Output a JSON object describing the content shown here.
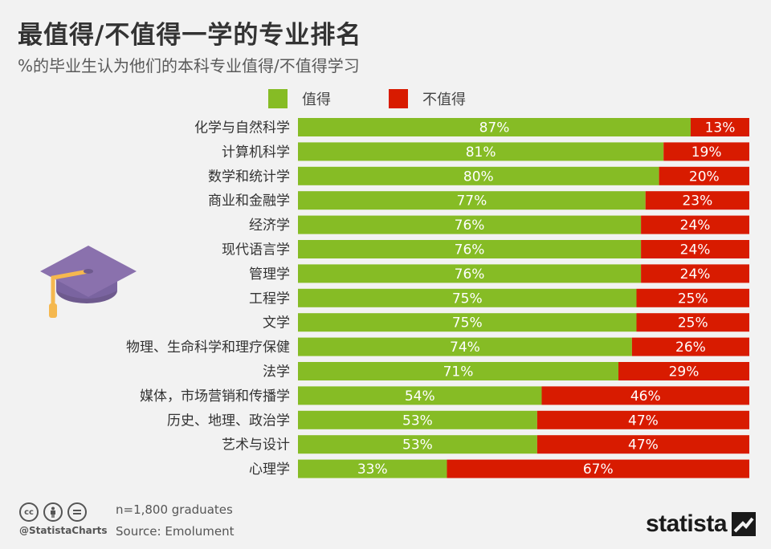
{
  "title": "最值得/不值得一学的专业排名",
  "subtitle": "%的毕业生认为他们的本科专业值得/不值得学习",
  "legend": {
    "worth_label": "值得",
    "not_worth_label": "不值得"
  },
  "colors": {
    "worth": "#86bc25",
    "not_worth": "#d81b00",
    "cap": "#8a71ad",
    "tassel": "#f5b84f"
  },
  "chart_data": {
    "type": "bar",
    "orientation": "horizontal",
    "stacked": true,
    "percent_suffix": "%",
    "categories": [
      "化学与自然科学",
      "计算机科学",
      "数学和统计学",
      "商业和金融学",
      "经济学",
      "现代语言学",
      "管理学",
      "工程学",
      "文学",
      "物理、生命科学和理疗保健",
      "法学",
      "媒体，市场营销和传播学",
      "历史、地理、政治学",
      "艺术与设计",
      "心理学"
    ],
    "series": [
      {
        "name": "值得",
        "values": [
          87,
          81,
          80,
          77,
          76,
          76,
          76,
          75,
          75,
          74,
          71,
          54,
          53,
          53,
          33
        ]
      },
      {
        "name": "不值得",
        "values": [
          13,
          19,
          20,
          23,
          24,
          24,
          24,
          25,
          25,
          26,
          29,
          46,
          47,
          47,
          67
        ]
      }
    ],
    "xlim": [
      0,
      100
    ]
  },
  "footer": {
    "cc_icons": [
      "cc-icon",
      "by-icon",
      "nd-icon"
    ],
    "handle": "@StatistaCharts",
    "note": "n=1,800 graduates",
    "source": "Source: Emolument",
    "brand": "statista"
  }
}
